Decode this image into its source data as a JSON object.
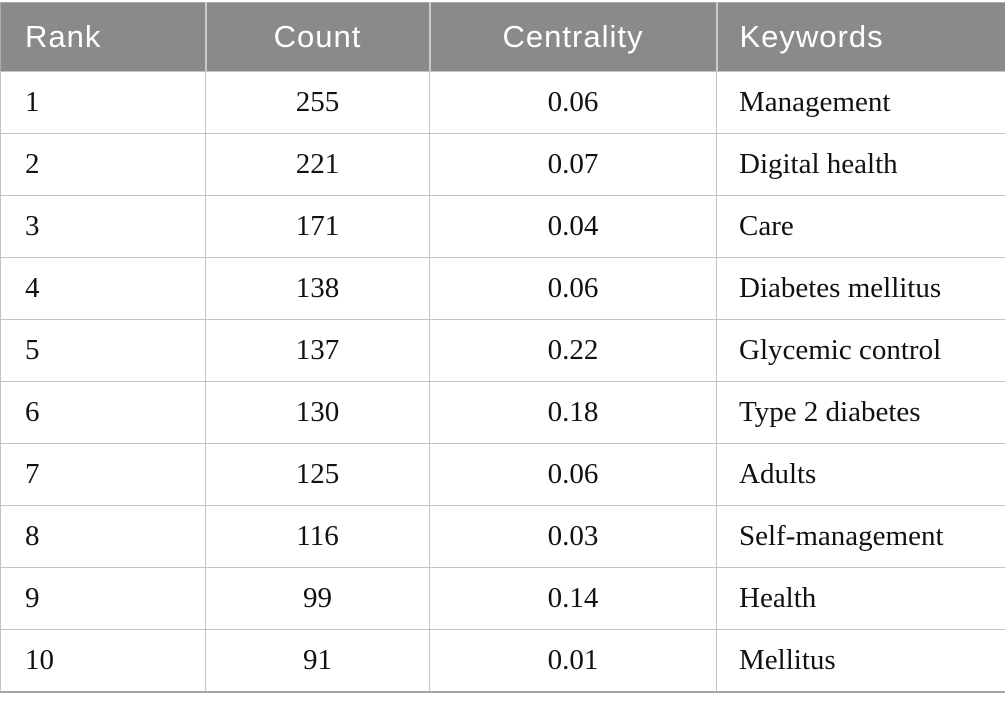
{
  "table": {
    "columns": [
      {
        "id": "rank",
        "label": "Rank",
        "align": "left"
      },
      {
        "id": "count",
        "label": "Count",
        "align": "center"
      },
      {
        "id": "centrality",
        "label": "Centrality",
        "align": "center"
      },
      {
        "id": "keywords",
        "label": "Keywords",
        "align": "left"
      }
    ],
    "rows": [
      {
        "rank": "1",
        "count": "255",
        "centrality": "0.06",
        "keywords": "Management"
      },
      {
        "rank": "2",
        "count": "221",
        "centrality": "0.07",
        "keywords": "Digital health"
      },
      {
        "rank": "3",
        "count": "171",
        "centrality": "0.04",
        "keywords": "Care"
      },
      {
        "rank": "4",
        "count": "138",
        "centrality": "0.06",
        "keywords": "Diabetes mellitus"
      },
      {
        "rank": "5",
        "count": "137",
        "centrality": "0.22",
        "keywords": "Glycemic control"
      },
      {
        "rank": "6",
        "count": "130",
        "centrality": "0.18",
        "keywords": "Type 2 diabetes"
      },
      {
        "rank": "7",
        "count": "125",
        "centrality": "0.06",
        "keywords": "Adults"
      },
      {
        "rank": "8",
        "count": "116",
        "centrality": "0.03",
        "keywords": "Self-management"
      },
      {
        "rank": "9",
        "count": "99",
        "centrality": "0.14",
        "keywords": "Health"
      },
      {
        "rank": "10",
        "count": "91",
        "centrality": "0.01",
        "keywords": "Mellitus"
      }
    ]
  },
  "colors": {
    "header_bg": "#8a8a8a",
    "header_text": "#ffffff",
    "body_text": "#111111",
    "inner_border": "#c3c3c3",
    "outer_border": "#ababab",
    "row_bg": "#ffffff"
  }
}
